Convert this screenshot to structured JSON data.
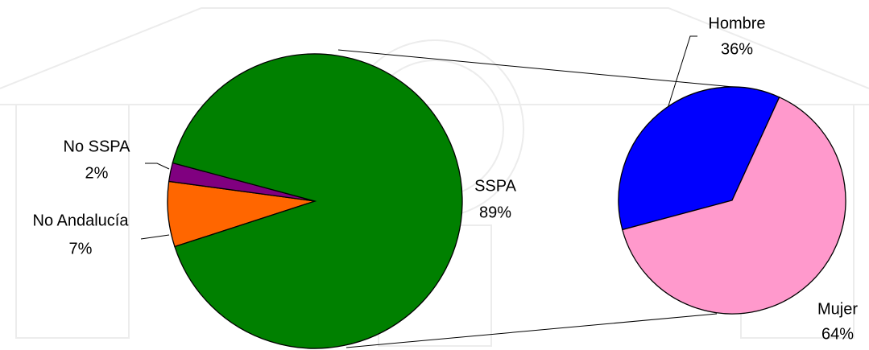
{
  "chart_data": [
    {
      "type": "pie",
      "categories": [
        "SSPA",
        "No SSPA",
        "No Andalucía"
      ],
      "values": [
        89,
        2,
        7
      ],
      "value_labels": [
        "89%",
        "2%",
        "7%"
      ],
      "colors": [
        "#008000",
        "#800080",
        "#ff6600"
      ]
    },
    {
      "type": "pie",
      "categories": [
        "Hombre",
        "Mujer"
      ],
      "values": [
        36,
        64
      ],
      "value_labels": [
        "36%",
        "64%"
      ],
      "colors": [
        "#0000ff",
        "#ff99cc"
      ]
    }
  ]
}
